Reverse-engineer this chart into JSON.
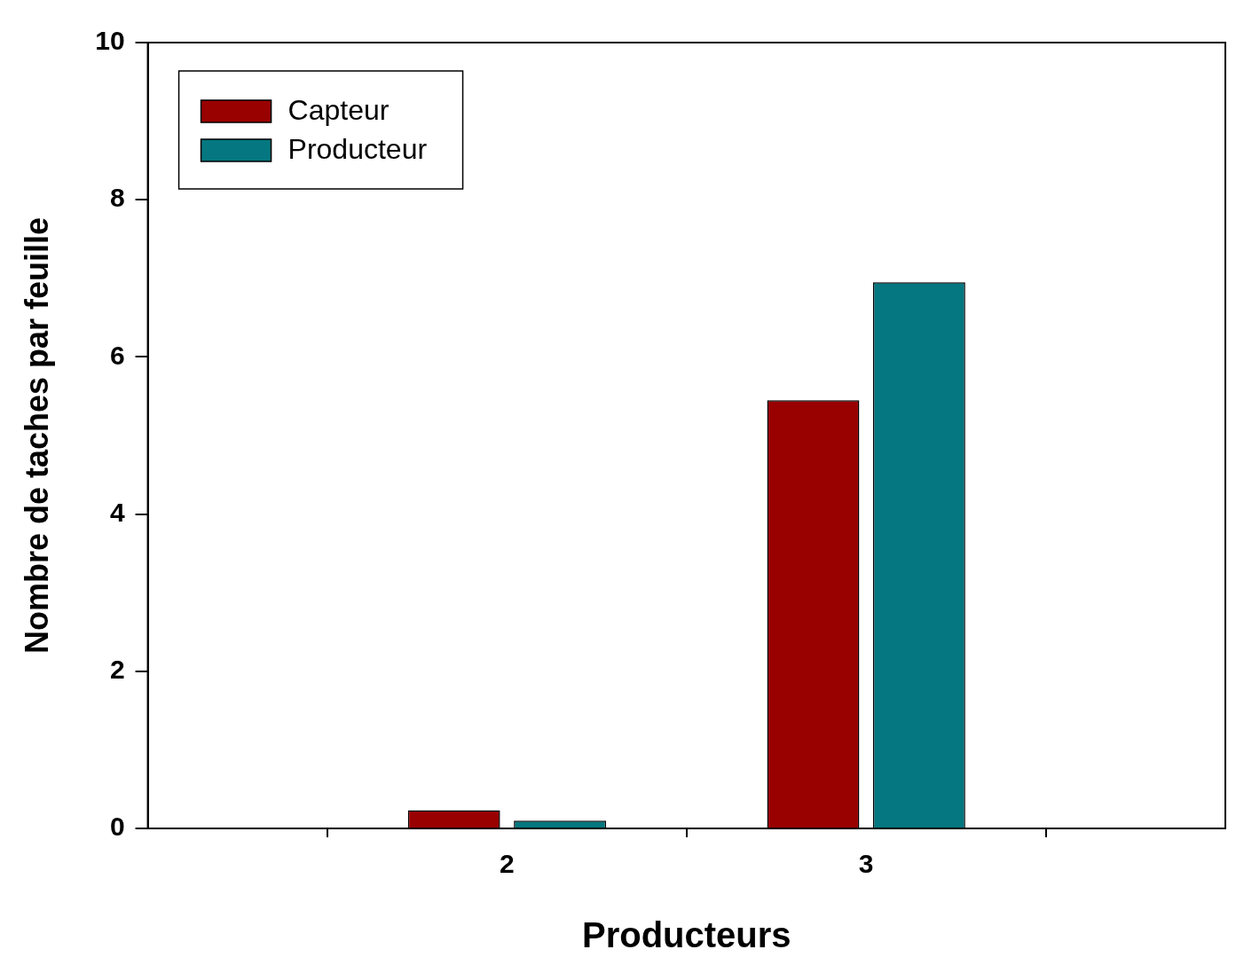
{
  "chart_data": {
    "type": "bar",
    "xlabel": "Producteurs",
    "ylabel": "Nombre de taches par feuille",
    "x": [
      2,
      3
    ],
    "xlim": [
      1,
      4
    ],
    "xticks": [
      2,
      3
    ],
    "ylim": [
      0,
      10
    ],
    "yticks": [
      0,
      2,
      4,
      6,
      8,
      10
    ],
    "series": [
      {
        "name": "Capteur",
        "color": "#990000",
        "values": [
          0.23,
          5.45
        ]
      },
      {
        "name": "Producteur",
        "color": "#047780",
        "values": [
          0.1,
          6.95
        ]
      }
    ],
    "legend": "top left",
    "grid": false
  }
}
